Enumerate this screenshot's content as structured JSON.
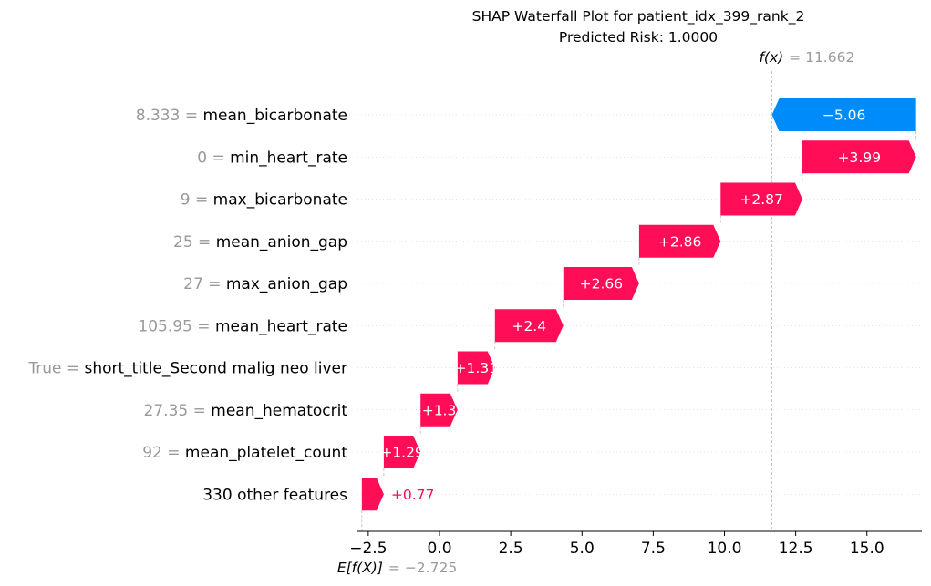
{
  "title": {
    "line1": "SHAP Waterfall Plot for patient_idx_399_rank_2",
    "line2": "Predicted Risk: 1.0000"
  },
  "fx": {
    "label": "f(x)",
    "value_text": "= 11.662",
    "value": 11.662
  },
  "base": {
    "label": "E[f(X)]",
    "value_text": "= −2.725",
    "value": -2.725
  },
  "colors": {
    "positive": "#ff0d57",
    "negative": "#008bfb",
    "value_text": "#999999"
  },
  "chart_data": {
    "type": "bar",
    "subtype": "waterfall",
    "xlim": [
      -2.75,
      16.9
    ],
    "xticks": [
      -2.5,
      0.0,
      2.5,
      5.0,
      7.5,
      10.0,
      12.5,
      15.0
    ],
    "xtick_labels": [
      "−2.5",
      "0.0",
      "2.5",
      "5.0",
      "7.5",
      "10.0",
      "12.5",
      "15.0"
    ],
    "base_value": -2.725,
    "final_value": 11.662,
    "features": [
      {
        "value": "8.333",
        "name": "mean_bicarbonate",
        "shap": -5.06,
        "label": "−5.06"
      },
      {
        "value": "0",
        "name": "min_heart_rate",
        "shap": 3.99,
        "label": "+3.99"
      },
      {
        "value": "9",
        "name": "max_bicarbonate",
        "shap": 2.87,
        "label": "+2.87"
      },
      {
        "value": "25",
        "name": "mean_anion_gap",
        "shap": 2.86,
        "label": "+2.86"
      },
      {
        "value": "27",
        "name": "max_anion_gap",
        "shap": 2.66,
        "label": "+2.66"
      },
      {
        "value": "105.95",
        "name": "mean_heart_rate",
        "shap": 2.4,
        "label": "+2.4"
      },
      {
        "value": "True",
        "name": "short_title_Second malig neo liver",
        "shap": 1.31,
        "label": "+1.31"
      },
      {
        "value": "27.35",
        "name": "mean_hematocrit",
        "shap": 1.3,
        "label": "+1.3"
      },
      {
        "value": "92",
        "name": "mean_platelet_count",
        "shap": 1.29,
        "label": "+1.29"
      },
      {
        "value": "",
        "name": "330 other features",
        "shap": 0.77,
        "label": "+0.77"
      }
    ]
  }
}
